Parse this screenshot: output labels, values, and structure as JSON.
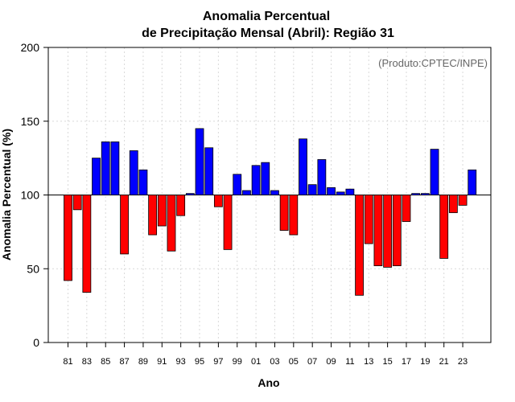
{
  "chart_data": {
    "type": "bar",
    "title_line1": "Anomalia Percentual",
    "title_line2": "de Precipitação Mensal (Abril): Região 31",
    "xlabel": "Ano",
    "ylabel": "Anomalia Percentual (%)",
    "source_label": "(Produto:CPTEC/INPE)",
    "ylim": [
      0,
      200
    ],
    "yticks": [
      "0",
      "50",
      "100",
      "150",
      "200"
    ],
    "baseline": 100,
    "tick_labels": [
      "81",
      "83",
      "85",
      "87",
      "89",
      "91",
      "93",
      "95",
      "97",
      "99",
      "01",
      "03",
      "05",
      "07",
      "09",
      "11",
      "13",
      "15",
      "17",
      "19",
      "21",
      "23"
    ],
    "categories": [
      "1981",
      "1982",
      "1983",
      "1984",
      "1985",
      "1986",
      "1987",
      "1988",
      "1989",
      "1990",
      "1991",
      "1992",
      "1993",
      "1994",
      "1995",
      "1996",
      "1997",
      "1998",
      "1999",
      "2000",
      "2001",
      "2002",
      "2003",
      "2004",
      "2005",
      "2006",
      "2007",
      "2008",
      "2009",
      "2010",
      "2011",
      "2012",
      "2013",
      "2014",
      "2015",
      "2016",
      "2017",
      "2018",
      "2019",
      "2020",
      "2021",
      "2022",
      "2023",
      "2024"
    ],
    "values": [
      42,
      90,
      34,
      125,
      136,
      136,
      60,
      130,
      117,
      73,
      79,
      62,
      86,
      101,
      145,
      132,
      92,
      63,
      114,
      103,
      120,
      122,
      103,
      76,
      73,
      138,
      107,
      124,
      105,
      102,
      104,
      32,
      67,
      52,
      51,
      52,
      82,
      101,
      101,
      131,
      57,
      88,
      93,
      117
    ],
    "colors": {
      "above": "#0000ff",
      "below": "#ff0000",
      "outline": "#000000"
    }
  }
}
